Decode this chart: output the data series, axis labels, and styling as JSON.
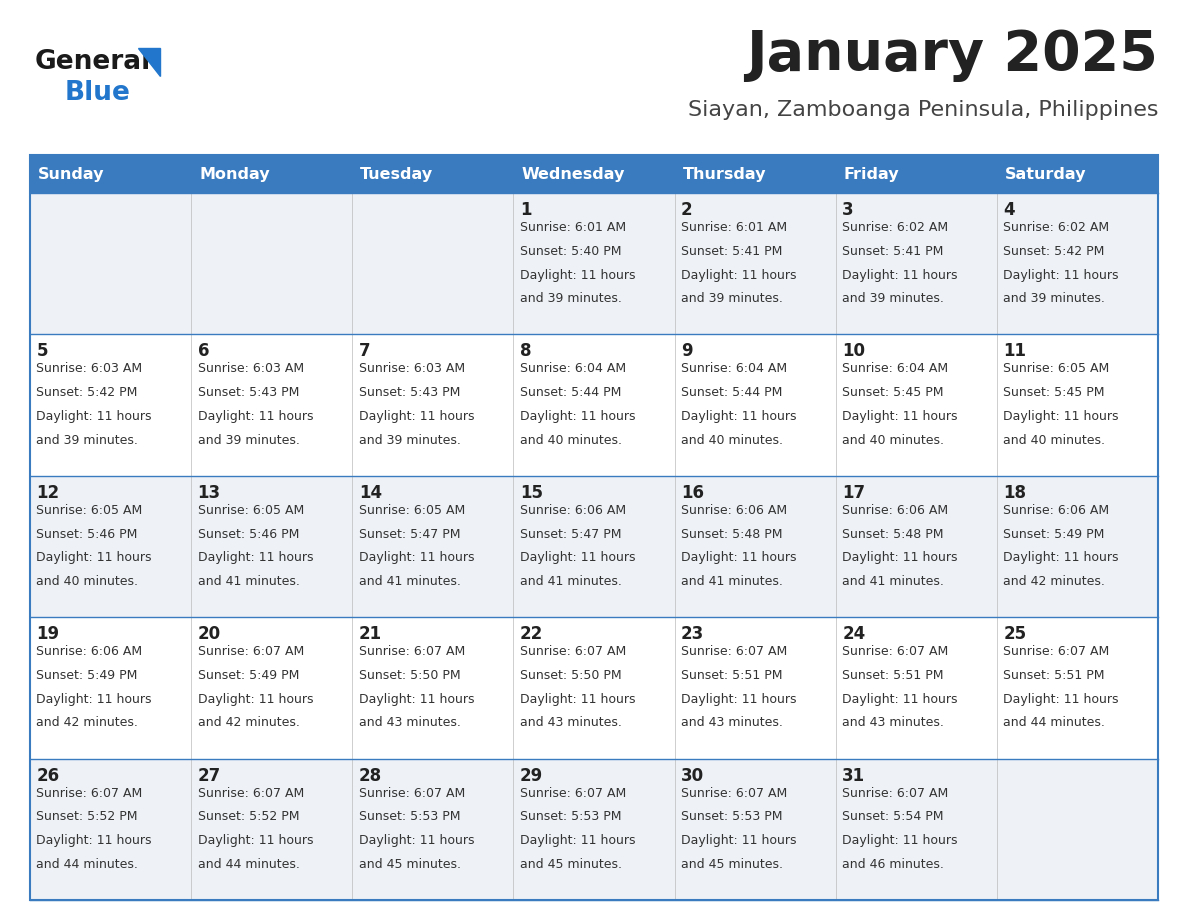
{
  "title": "January 2025",
  "subtitle": "Siayan, Zamboanga Peninsula, Philippines",
  "days_of_week": [
    "Sunday",
    "Monday",
    "Tuesday",
    "Wednesday",
    "Thursday",
    "Friday",
    "Saturday"
  ],
  "header_bg": "#3a7bbf",
  "header_text": "#ffffff",
  "row_bg_odd": "#eef2f7",
  "row_bg_even": "#ffffff",
  "cell_border_color": "#3a7bbf",
  "day_num_color": "#222222",
  "text_color": "#333333",
  "title_color": "#222222",
  "subtitle_color": "#444444",
  "logo_general_color": "#1a1a1a",
  "logo_blue_color": "#2277cc",
  "triangle_color": "#2277cc",
  "background": "#ffffff",
  "calendar": [
    [
      {
        "day": "",
        "sunrise": "",
        "sunset": "",
        "daylight": ""
      },
      {
        "day": "",
        "sunrise": "",
        "sunset": "",
        "daylight": ""
      },
      {
        "day": "",
        "sunrise": "",
        "sunset": "",
        "daylight": ""
      },
      {
        "day": "1",
        "sunrise": "6:01 AM",
        "sunset": "5:40 PM",
        "daylight": "11 hours and 39 minutes."
      },
      {
        "day": "2",
        "sunrise": "6:01 AM",
        "sunset": "5:41 PM",
        "daylight": "11 hours and 39 minutes."
      },
      {
        "day": "3",
        "sunrise": "6:02 AM",
        "sunset": "5:41 PM",
        "daylight": "11 hours and 39 minutes."
      },
      {
        "day": "4",
        "sunrise": "6:02 AM",
        "sunset": "5:42 PM",
        "daylight": "11 hours and 39 minutes."
      }
    ],
    [
      {
        "day": "5",
        "sunrise": "6:03 AM",
        "sunset": "5:42 PM",
        "daylight": "11 hours and 39 minutes."
      },
      {
        "day": "6",
        "sunrise": "6:03 AM",
        "sunset": "5:43 PM",
        "daylight": "11 hours and 39 minutes."
      },
      {
        "day": "7",
        "sunrise": "6:03 AM",
        "sunset": "5:43 PM",
        "daylight": "11 hours and 39 minutes."
      },
      {
        "day": "8",
        "sunrise": "6:04 AM",
        "sunset": "5:44 PM",
        "daylight": "11 hours and 40 minutes."
      },
      {
        "day": "9",
        "sunrise": "6:04 AM",
        "sunset": "5:44 PM",
        "daylight": "11 hours and 40 minutes."
      },
      {
        "day": "10",
        "sunrise": "6:04 AM",
        "sunset": "5:45 PM",
        "daylight": "11 hours and 40 minutes."
      },
      {
        "day": "11",
        "sunrise": "6:05 AM",
        "sunset": "5:45 PM",
        "daylight": "11 hours and 40 minutes."
      }
    ],
    [
      {
        "day": "12",
        "sunrise": "6:05 AM",
        "sunset": "5:46 PM",
        "daylight": "11 hours and 40 minutes."
      },
      {
        "day": "13",
        "sunrise": "6:05 AM",
        "sunset": "5:46 PM",
        "daylight": "11 hours and 41 minutes."
      },
      {
        "day": "14",
        "sunrise": "6:05 AM",
        "sunset": "5:47 PM",
        "daylight": "11 hours and 41 minutes."
      },
      {
        "day": "15",
        "sunrise": "6:06 AM",
        "sunset": "5:47 PM",
        "daylight": "11 hours and 41 minutes."
      },
      {
        "day": "16",
        "sunrise": "6:06 AM",
        "sunset": "5:48 PM",
        "daylight": "11 hours and 41 minutes."
      },
      {
        "day": "17",
        "sunrise": "6:06 AM",
        "sunset": "5:48 PM",
        "daylight": "11 hours and 41 minutes."
      },
      {
        "day": "18",
        "sunrise": "6:06 AM",
        "sunset": "5:49 PM",
        "daylight": "11 hours and 42 minutes."
      }
    ],
    [
      {
        "day": "19",
        "sunrise": "6:06 AM",
        "sunset": "5:49 PM",
        "daylight": "11 hours and 42 minutes."
      },
      {
        "day": "20",
        "sunrise": "6:07 AM",
        "sunset": "5:49 PM",
        "daylight": "11 hours and 42 minutes."
      },
      {
        "day": "21",
        "sunrise": "6:07 AM",
        "sunset": "5:50 PM",
        "daylight": "11 hours and 43 minutes."
      },
      {
        "day": "22",
        "sunrise": "6:07 AM",
        "sunset": "5:50 PM",
        "daylight": "11 hours and 43 minutes."
      },
      {
        "day": "23",
        "sunrise": "6:07 AM",
        "sunset": "5:51 PM",
        "daylight": "11 hours and 43 minutes."
      },
      {
        "day": "24",
        "sunrise": "6:07 AM",
        "sunset": "5:51 PM",
        "daylight": "11 hours and 43 minutes."
      },
      {
        "day": "25",
        "sunrise": "6:07 AM",
        "sunset": "5:51 PM",
        "daylight": "11 hours and 44 minutes."
      }
    ],
    [
      {
        "day": "26",
        "sunrise": "6:07 AM",
        "sunset": "5:52 PM",
        "daylight": "11 hours and 44 minutes."
      },
      {
        "day": "27",
        "sunrise": "6:07 AM",
        "sunset": "5:52 PM",
        "daylight": "11 hours and 44 minutes."
      },
      {
        "day": "28",
        "sunrise": "6:07 AM",
        "sunset": "5:53 PM",
        "daylight": "11 hours and 45 minutes."
      },
      {
        "day": "29",
        "sunrise": "6:07 AM",
        "sunset": "5:53 PM",
        "daylight": "11 hours and 45 minutes."
      },
      {
        "day": "30",
        "sunrise": "6:07 AM",
        "sunset": "5:53 PM",
        "daylight": "11 hours and 45 minutes."
      },
      {
        "day": "31",
        "sunrise": "6:07 AM",
        "sunset": "5:54 PM",
        "daylight": "11 hours and 46 minutes."
      },
      {
        "day": "",
        "sunrise": "",
        "sunset": "",
        "daylight": ""
      }
    ]
  ]
}
